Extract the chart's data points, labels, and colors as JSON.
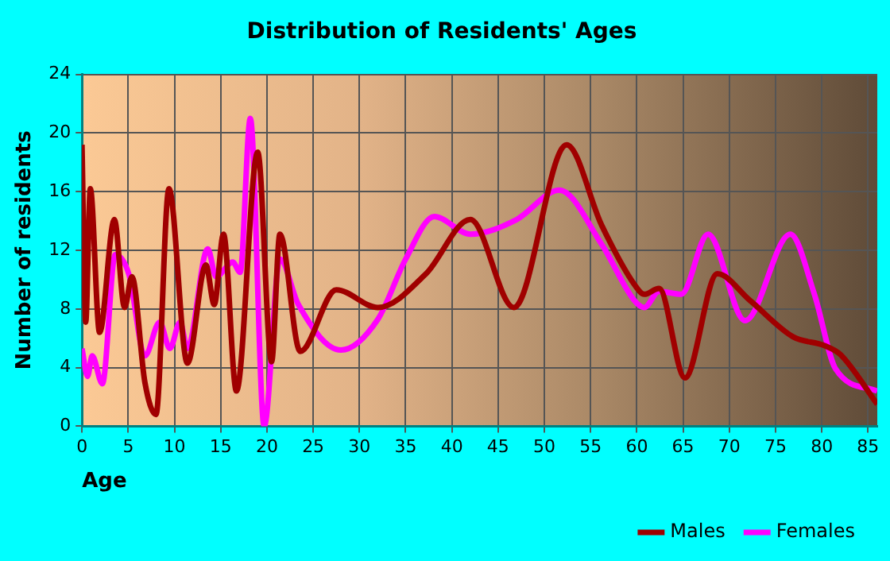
{
  "chart_data": {
    "type": "line",
    "title": "Distribution of Residents' Ages",
    "xlabel": "Age",
    "ylabel": "Number of residents",
    "xlim": [
      0,
      86
    ],
    "xticks": [
      0,
      5,
      10,
      15,
      20,
      25,
      30,
      35,
      40,
      45,
      50,
      55,
      60,
      65,
      70,
      75,
      80,
      85
    ],
    "ylim": [
      0,
      24
    ],
    "yticks": [
      0,
      4,
      8,
      12,
      16,
      20,
      24
    ],
    "grid": true,
    "legend": "bottom",
    "marker": "none",
    "line_style": "solid",
    "series": [
      {
        "name": "Males",
        "color": "#a00000",
        "x": [
          0,
          0.4,
          0.9,
          1.9,
          3.5,
          4.6,
          5.4,
          6.8,
          8.0,
          9.4,
          11.4,
          13.4,
          14.3,
          15.3,
          16.7,
          19.0,
          20.5,
          21.4,
          23.6,
          27.5,
          32,
          37.2,
          42,
          46.7,
          52.4,
          56.2,
          59.7,
          60.8,
          62.4,
          65.2,
          68.7,
          72.2,
          76.9,
          80.3,
          82,
          86
        ],
        "values": [
          19.2,
          7.1,
          16.2,
          6.4,
          14.1,
          8.1,
          10.2,
          3.0,
          0.8,
          16.2,
          4.3,
          11.0,
          8.3,
          13.1,
          2.4,
          18.7,
          4.4,
          13.1,
          5.1,
          9.3,
          8.1,
          10.4,
          14.1,
          8.1,
          19.2,
          13.7,
          9.7,
          9.0,
          9.4,
          3.3,
          10.4,
          8.6,
          6.1,
          5.5,
          4.9,
          1.5
        ]
      },
      {
        "name": "Females",
        "color": "#ff00ff",
        "x": [
          0,
          0.6,
          1.1,
          2.2,
          3.6,
          5.1,
          6.8,
          8.4,
          9.5,
          10.6,
          11.4,
          13.6,
          14.5,
          16.3,
          17.1,
          18.2,
          19.7,
          21.4,
          23.4,
          28,
          32,
          35,
          38.1,
          42,
          47,
          51.6,
          56.2,
          59.7,
          60.8,
          62.4,
          64.8,
          67.7,
          71.7,
          76.6,
          79.2,
          81.5,
          86
        ],
        "values": [
          5.3,
          3.4,
          4.8,
          2.9,
          11.7,
          10.3,
          4.8,
          7.1,
          5.3,
          7.1,
          5.3,
          12.1,
          10.2,
          11.2,
          10.5,
          21.0,
          0,
          11.4,
          8.3,
          5.2,
          7.3,
          11.4,
          14.3,
          13.1,
          14.1,
          16.1,
          12.4,
          8.6,
          8.1,
          9.2,
          9.0,
          13.1,
          7.2,
          13.1,
          9.0,
          3.9,
          2.4
        ]
      }
    ]
  }
}
